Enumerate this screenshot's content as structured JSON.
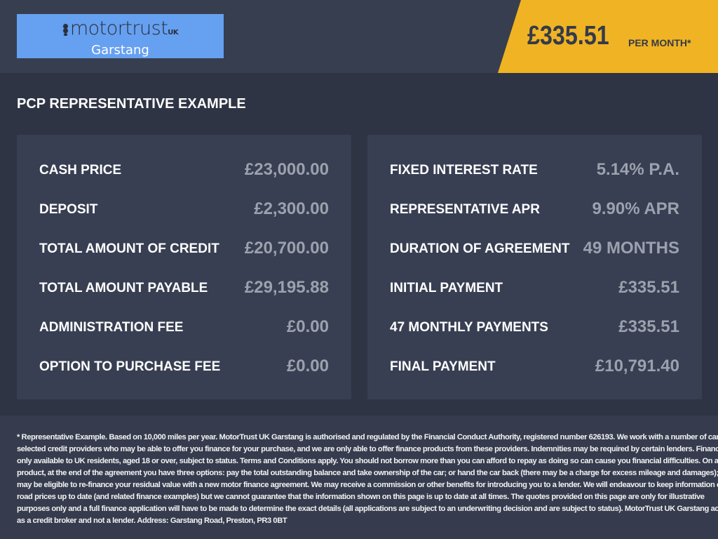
{
  "header": {
    "logo": {
      "brand": "motortrust",
      "suffix": "UK",
      "branch": "Garstang"
    },
    "price": "£335.51",
    "per_month": "PER MONTH*",
    "accent": "#f0b323"
  },
  "title": "PCP REPRESENTATIVE EXAMPLE",
  "left_panel": [
    {
      "label": "CASH PRICE",
      "value": "£23,000.00"
    },
    {
      "label": "DEPOSIT",
      "value": "£2,300.00"
    },
    {
      "label": "TOTAL AMOUNT OF CREDIT",
      "value": "£20,700.00"
    },
    {
      "label": "TOTAL AMOUNT PAYABLE",
      "value": "£29,195.88"
    },
    {
      "label": "ADMINISTRATION FEE",
      "value": "£0.00"
    },
    {
      "label": "OPTION TO PURCHASE FEE",
      "value": "£0.00"
    }
  ],
  "right_panel": [
    {
      "label": "FIXED INTEREST RATE",
      "value": "5.14% P.A."
    },
    {
      "label": "REPRESENTATIVE APR",
      "value": "9.90% APR"
    },
    {
      "label": "DURATION OF AGREEMENT",
      "value": "49 MONTHS"
    },
    {
      "label": "INITIAL PAYMENT",
      "value": "£335.51"
    },
    {
      "label": "47 MONTHLY PAYMENTS",
      "value": "£335.51"
    },
    {
      "label": "FINAL PAYMENT",
      "value": "£10,791.40"
    }
  ],
  "disclaimer_lines": [
    "* Representative Example. Based on 10,000 miles per year. MotorTrust UK Garstang is authorised and regulated by the Financial Conduct Authority, registered number 626193. We work with a number of carefully",
    "selected credit providers who may be able to offer you finance for your purchase, and we are only able to offer finance products from these providers. Indemnities may be required by certain lenders. Finance is",
    "only available to UK residents, aged 18 or over, subject to status. Terms and Conditions apply. You should not borrow more than you can afford to repay as doing so can cause you financial difficulties. On a PCP",
    "product, at the end of the agreement you have three options: pay the total outstanding balance and take ownership of the car; or hand the car back (there may be a charge for excess mileage and damages); or you",
    "may be eligible to re-finance your residual value with a new motor finance agreement. We may receive a commission or other benefits for introducing you to a lender. We will endeavour to keep information on the",
    "road prices up to date (and related finance examples) but we cannot guarantee that the information shown on this page is up to date at all times. The quotes provided on this page are only for illustrative",
    "purposes only and a full finance application will have to be made to determine the exact details (all applications are subject to an underwriting decision and are subject to status). MotorTrust UK Garstang acts",
    "as a credit broker and not a lender. Address: Garstang Road, Preston, PR3 0BT"
  ]
}
